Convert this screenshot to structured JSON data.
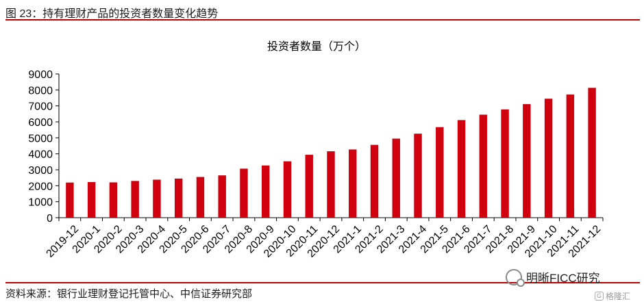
{
  "figure": {
    "title": "图 23：持有理财产品的投资者数量变化趋势"
  },
  "source": {
    "text": "资料来源：银行业理财登记托管中心、中信证券研究部"
  },
  "watermark": {
    "text": "明晰FICC研究",
    "icon": "wechat-icon"
  },
  "brand": {
    "text": "格隆汇",
    "icon": "gelonghui-logo-icon"
  },
  "colors": {
    "bar": "#d0000f",
    "rule": "#c00000"
  },
  "chart_data": {
    "type": "bar",
    "title": "投资者数量（万个）",
    "xlabel": "",
    "ylabel": "",
    "ylim": [
      0,
      9000
    ],
    "yticks": [
      0,
      1000,
      2000,
      3000,
      4000,
      5000,
      6000,
      7000,
      8000,
      9000
    ],
    "grid": false,
    "legend": "none",
    "categories": [
      "2019-12",
      "2020-1",
      "2020-2",
      "2020-3",
      "2020-4",
      "2020-5",
      "2020-6",
      "2020-7",
      "2020-8",
      "2020-9",
      "2020-10",
      "2020-11",
      "2020-12",
      "2021-1",
      "2021-2",
      "2021-3",
      "2021-4",
      "2021-5",
      "2021-6",
      "2021-7",
      "2021-8",
      "2021-9",
      "2021-10",
      "2021-11",
      "2021-12"
    ],
    "values": [
      2200,
      2230,
      2210,
      2300,
      2380,
      2450,
      2550,
      2650,
      3070,
      3270,
      3530,
      3940,
      4160,
      4270,
      4560,
      4950,
      5260,
      5670,
      6110,
      6450,
      6780,
      7110,
      7450,
      7710,
      8130
    ]
  }
}
